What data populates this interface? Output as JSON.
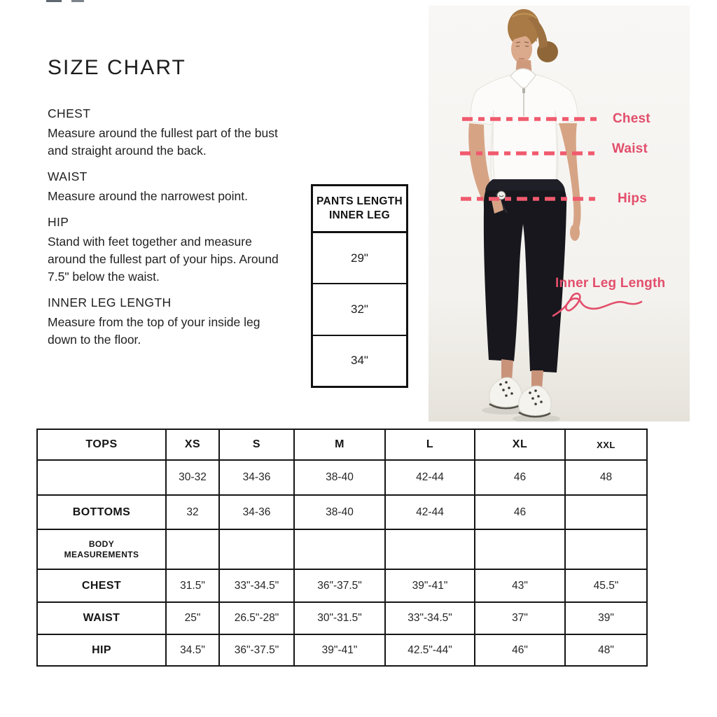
{
  "title": "SIZE CHART",
  "colors": {
    "label_pink": "#e24e6b",
    "dash_pink": "#f05a6e",
    "table_border": "#161616",
    "photo_background": "#f6f5f2"
  },
  "instructions": [
    {
      "heading": "CHEST",
      "body": "Measure around the fullest part of the bust and straight around the back."
    },
    {
      "heading": "WAIST",
      "body": "Measure around the narrowest point."
    },
    {
      "heading": "HIP",
      "body": "Stand with feet together and measure around the fullest part of your hips. Around 7.5\" below the waist."
    },
    {
      "heading": "INNER LEG LENGTH",
      "body": "Measure from the top of your inside leg down to the floor."
    }
  ],
  "pants_length_table": {
    "header_lines": [
      "PANTS LENGTH",
      "INNER LEG"
    ],
    "values": [
      "29\"",
      "32\"",
      "34\""
    ]
  },
  "figure": {
    "labels": {
      "chest": "Chest",
      "waist": "Waist",
      "hips": "Hips",
      "inner_leg": "Inner Leg Length"
    }
  },
  "size_table": {
    "columns": [
      "TOPS",
      "XS",
      "S",
      "M",
      "L",
      "XL",
      "XXL"
    ],
    "rows": [
      {
        "label": "",
        "values": [
          "30-32",
          "34-36",
          "38-40",
          "42-44",
          "46",
          "48"
        ]
      },
      {
        "label": "BOTTOMS",
        "values": [
          "32",
          "34-36",
          "38-40",
          "42-44",
          "46",
          ""
        ]
      },
      {
        "label": "BODY MEASUREMENTS",
        "values": [
          "",
          "",
          "",
          "",
          "",
          ""
        ]
      },
      {
        "label": "CHEST",
        "values": [
          "31.5\"",
          "33\"-34.5\"",
          "36\"-37.5\"",
          "39\"-41\"",
          "43\"",
          "45.5\""
        ]
      },
      {
        "label": "WAIST",
        "values": [
          "25\"",
          "26.5\"-28\"",
          "30\"-31.5\"",
          "33\"-34.5\"",
          "37\"",
          "39\""
        ]
      },
      {
        "label": "HIP",
        "values": [
          "34.5\"",
          "36\"-37.5\"",
          "39\"-41\"",
          "42.5\"-44\"",
          "46\"",
          "48\""
        ]
      }
    ]
  }
}
